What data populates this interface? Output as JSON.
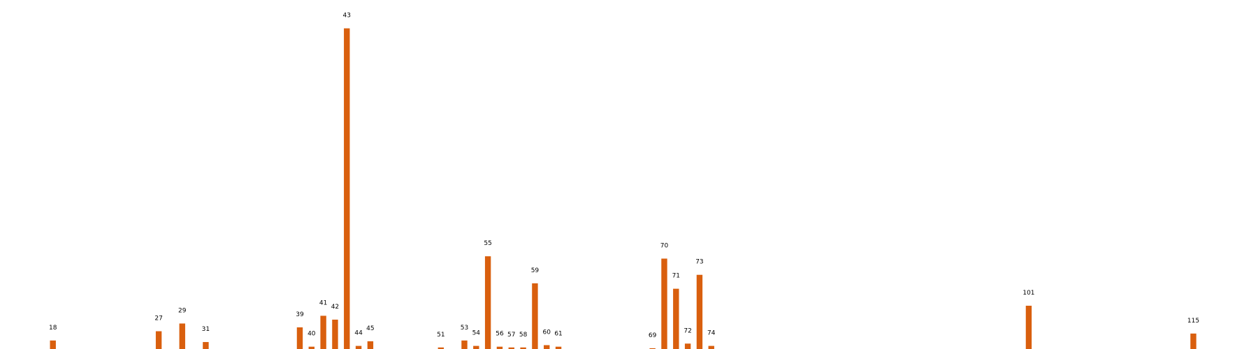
{
  "chart_data": {
    "type": "bar",
    "title": "",
    "xlabel": "",
    "ylabel": "",
    "axes_visible": false,
    "grid": false,
    "legend": "none",
    "bar_color": "#d95f0e",
    "xlim": [
      13.5,
      120.5
    ],
    "ylim": [
      0,
      430
    ],
    "categories": [
      "18",
      "27",
      "29",
      "31",
      "39",
      "40",
      "41",
      "42",
      "43",
      "44",
      "45",
      "51",
      "53",
      "54",
      "55",
      "56",
      "57",
      "58",
      "59",
      "60",
      "61",
      "69",
      "70",
      "71",
      "72",
      "73",
      "74",
      "101",
      "115"
    ],
    "values": [
      11,
      23,
      33,
      9,
      28,
      3,
      43,
      38,
      415,
      4,
      10,
      2,
      11,
      4,
      120,
      3,
      2,
      2,
      85,
      5,
      3,
      1,
      117,
      78,
      7,
      96,
      4,
      56,
      20
    ]
  }
}
